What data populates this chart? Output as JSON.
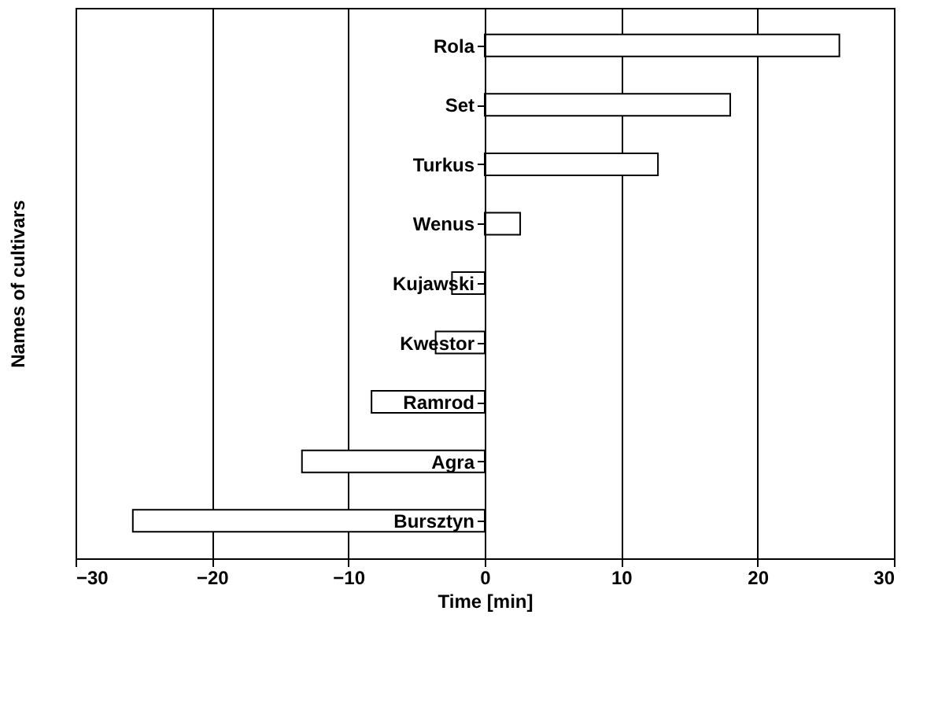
{
  "chart_data": {
    "type": "bar",
    "orientation": "horizontal",
    "xlabel": "Time [min]",
    "ylabel": "Names of cultivars",
    "categories": [
      "Rola",
      "Set",
      "Turkus",
      "Wenus",
      "Kujawski",
      "Kwestor",
      "Ramrod",
      "Agra",
      "Bursztyn"
    ],
    "values": [
      26,
      18,
      12.7,
      2.6,
      -2.4,
      -3.6,
      -8.3,
      -13.4,
      -25.8
    ],
    "color": "#ffffff",
    "xlim": [
      -30,
      30
    ],
    "xticks": [
      -30,
      -20,
      -10,
      0,
      10,
      20,
      30
    ],
    "grid": "x"
  }
}
